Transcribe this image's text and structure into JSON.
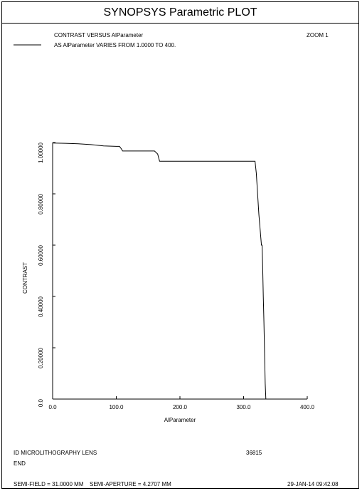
{
  "window": {
    "title": "SYNOPSYS Parametric PLOT"
  },
  "header": {
    "line1": "CONTRAST VERSUS AlParameter",
    "line2": "AS AlParameter VARIES FROM    1.0000 TO      400.",
    "zoom": "ZOOM   1"
  },
  "footer": {
    "lens_id": "ID MICROLITHOGRAPHY LENS",
    "code": "36815",
    "end": "END",
    "semi_field": "SEMI-FIELD =   31.0000 MM",
    "semi_aperture": "SEMI-APERTURE =   4.2707 MM",
    "date": "29-JAN-14   09:42:08"
  },
  "colors": {
    "line": "#000000",
    "background": "#ffffff"
  },
  "chart_data": {
    "type": "line",
    "title": "",
    "xlabel": "AlParameter",
    "ylabel": "CONTRAST",
    "xlim": [
      0,
      400
    ],
    "ylim": [
      0,
      1
    ],
    "grid": false,
    "x_ticks": [
      0,
      100,
      200,
      300,
      400
    ],
    "x_tick_labels": [
      "0.0",
      "100.0",
      "200.0",
      "300.0",
      "400.0"
    ],
    "y_ticks": [
      0,
      0.2,
      0.4,
      0.6,
      0.8,
      1.0
    ],
    "y_tick_labels": [
      "0.0",
      "0.20000",
      "0.40000",
      "0.60000",
      "0.80000",
      "1.00000"
    ],
    "series": [
      {
        "x": [
          1,
          20,
          40,
          60,
          80,
          100,
          105,
          108,
          110,
          130,
          150,
          160,
          165,
          168,
          200,
          250,
          300,
          318,
          320,
          322,
          324,
          326,
          328,
          329,
          330,
          331,
          332,
          333,
          334,
          335
        ],
        "y": [
          0.998,
          0.997,
          0.995,
          0.992,
          0.987,
          0.985,
          0.985,
          0.975,
          0.967,
          0.967,
          0.967,
          0.967,
          0.955,
          0.927,
          0.927,
          0.927,
          0.927,
          0.927,
          0.88,
          0.8,
          0.72,
          0.66,
          0.6,
          0.6,
          0.52,
          0.4,
          0.3,
          0.18,
          0.06,
          0.0
        ]
      }
    ]
  }
}
